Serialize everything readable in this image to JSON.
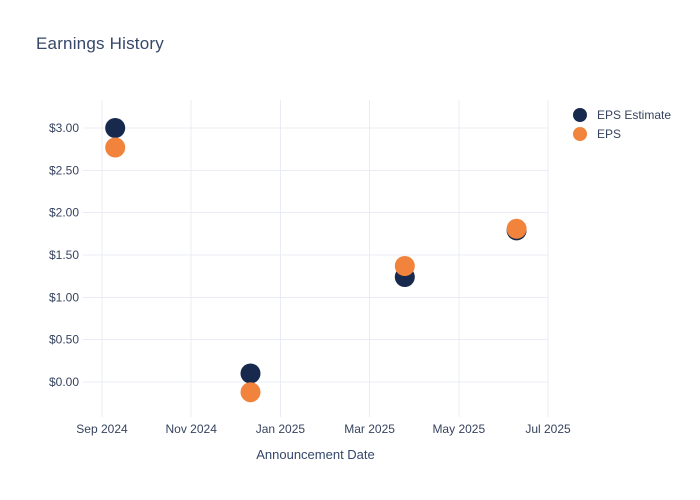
{
  "colors": {
    "background": "#ffffff",
    "title_text": "#36476a",
    "tick_text": "#36435f",
    "gridline": "#e9ecf4",
    "eps_estimate": "#172a4d",
    "eps": "#f2833d"
  },
  "chart_data": {
    "type": "scatter",
    "title": "Earnings History",
    "xlabel": "Announcement Date",
    "ylabel": "",
    "grid": true,
    "legend_position": "top-right",
    "x_ticks": [
      "Sep 2024",
      "Nov 2024",
      "Jan 2025",
      "Mar 2025",
      "May 2025",
      "Jul 2025"
    ],
    "y_ticks": [
      {
        "label": "$3.00",
        "value": 3.0
      },
      {
        "label": "$2.50",
        "value": 2.5
      },
      {
        "label": "$2.00",
        "value": 2.0
      },
      {
        "label": "$1.50",
        "value": 1.5
      },
      {
        "label": "$1.00",
        "value": 1.0
      },
      {
        "label": "$0.50",
        "value": 0.5
      },
      {
        "label": "$0.00",
        "value": 0.0
      }
    ],
    "ylim": [
      -0.43,
      3.33
    ],
    "series": [
      {
        "name": "EPS Estimate",
        "color": "#172a4d",
        "points": [
          {
            "date": "2024-09-10",
            "value": 3.0
          },
          {
            "date": "2024-12-11",
            "value": 0.1
          },
          {
            "date": "2025-03-25",
            "value": 1.24
          },
          {
            "date": "2025-06-10",
            "value": 1.79
          }
        ]
      },
      {
        "name": "EPS",
        "color": "#f2833d",
        "points": [
          {
            "date": "2024-09-10",
            "value": 2.77
          },
          {
            "date": "2024-12-11",
            "value": -0.12
          },
          {
            "date": "2025-03-25",
            "value": 1.37
          },
          {
            "date": "2025-06-10",
            "value": 1.81
          }
        ]
      }
    ]
  }
}
